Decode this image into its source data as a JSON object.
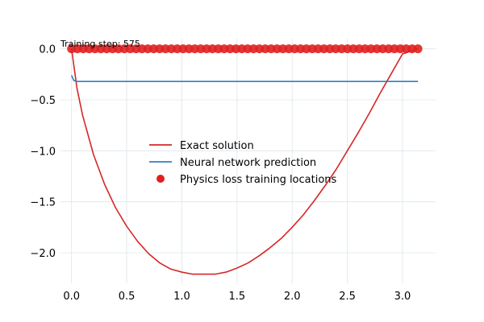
{
  "chart_data": {
    "type": "line",
    "title": "",
    "xlabel": "",
    "ylabel": "",
    "xlim": [
      -0.1,
      3.3
    ],
    "ylim": [
      -2.3,
      0.1
    ],
    "x_ticks": [
      "0.0",
      "0.5",
      "1.0",
      "1.5",
      "2.0",
      "2.5",
      "3.0"
    ],
    "x_tick_values": [
      0,
      0.5,
      1.0,
      1.5,
      2.0,
      2.5,
      3.0
    ],
    "y_ticks": [
      "0.0",
      "−0.5",
      "−1.0",
      "−1.5",
      "−2.0"
    ],
    "y_tick_values": [
      0,
      -0.5,
      -1.0,
      -1.5,
      -2.0
    ],
    "grid": true,
    "legend_position": "center-left",
    "annotation": "Training step: 575",
    "series": [
      {
        "name": "Exact solution",
        "kind": "line",
        "color": "#d62728",
        "points": [
          [
            0.0,
            0.0
          ],
          [
            0.05,
            -0.39
          ],
          [
            0.1,
            -0.65
          ],
          [
            0.2,
            -1.04
          ],
          [
            0.3,
            -1.33
          ],
          [
            0.4,
            -1.56
          ],
          [
            0.5,
            -1.74
          ],
          [
            0.6,
            -1.89
          ],
          [
            0.7,
            -2.01
          ],
          [
            0.8,
            -2.1
          ],
          [
            0.9,
            -2.16
          ],
          [
            1.0,
            -2.19
          ],
          [
            1.1,
            -2.21
          ],
          [
            1.2,
            -2.21
          ],
          [
            1.3,
            -2.21
          ],
          [
            1.4,
            -2.19
          ],
          [
            1.5,
            -2.15
          ],
          [
            1.6,
            -2.1
          ],
          [
            1.7,
            -2.03
          ],
          [
            1.8,
            -1.95
          ],
          [
            1.9,
            -1.86
          ],
          [
            2.0,
            -1.75
          ],
          [
            2.1,
            -1.63
          ],
          [
            2.2,
            -1.49
          ],
          [
            2.3,
            -1.34
          ],
          [
            2.4,
            -1.18
          ],
          [
            2.5,
            -1.0
          ],
          [
            2.6,
            -0.82
          ],
          [
            2.7,
            -0.63
          ],
          [
            2.8,
            -0.43
          ],
          [
            2.9,
            -0.24
          ],
          [
            3.0,
            -0.05
          ],
          [
            3.14,
            0.0
          ]
        ]
      },
      {
        "name": "Neural network prediction",
        "kind": "line",
        "color": "#2f7ec2",
        "points": [
          [
            0.0,
            -0.26
          ],
          [
            0.02,
            -0.31
          ],
          [
            0.05,
            -0.32
          ],
          [
            0.5,
            -0.32
          ],
          [
            1.0,
            -0.32
          ],
          [
            1.5,
            -0.32
          ],
          [
            2.0,
            -0.32
          ],
          [
            2.5,
            -0.32
          ],
          [
            3.0,
            -0.32
          ],
          [
            3.14,
            -0.32
          ]
        ]
      },
      {
        "name": "Physics loss training locations",
        "kind": "scatter",
        "color": "#e02020",
        "x_start": 0.0,
        "x_end": 3.14,
        "count": 60,
        "y": 0.0
      }
    ]
  }
}
